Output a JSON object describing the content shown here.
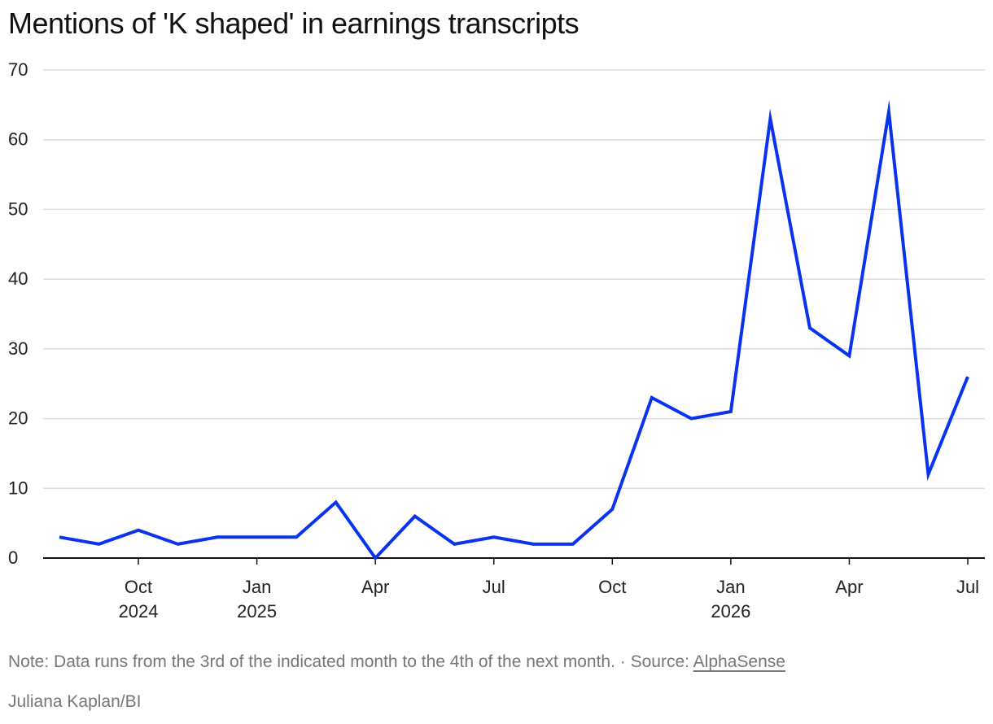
{
  "chart_data": {
    "type": "line",
    "title": "Mentions of 'K shaped' in earnings transcripts",
    "xlabel": "",
    "ylabel": "",
    "x": [
      "2024-08",
      "2024-09",
      "2024-10",
      "2024-11",
      "2024-12",
      "2025-01",
      "2025-02",
      "2025-03",
      "2025-04",
      "2025-05",
      "2025-06",
      "2025-07",
      "2025-08",
      "2025-09",
      "2025-10",
      "2025-11",
      "2025-12",
      "2026-01",
      "2026-02",
      "2026-03",
      "2026-04",
      "2026-05",
      "2026-06",
      "2026-07"
    ],
    "series": [
      {
        "values": [
          3,
          2,
          4,
          2,
          3,
          3,
          3,
          8,
          0,
          6,
          2,
          3,
          2,
          2,
          7,
          23,
          20,
          21,
          63,
          33,
          29,
          64,
          12,
          26
        ],
        "color": "#0a33ee"
      }
    ],
    "ylim": [
      0,
      70
    ],
    "yticks": [
      0,
      10,
      20,
      30,
      40,
      50,
      60,
      70
    ],
    "xticks": [
      {
        "month": "2024-10",
        "label": "Oct",
        "year": "2024"
      },
      {
        "month": "2025-01",
        "label": "Jan",
        "year": "2025"
      },
      {
        "month": "2025-04",
        "label": "Apr",
        "year": ""
      },
      {
        "month": "2025-07",
        "label": "Jul",
        "year": ""
      },
      {
        "month": "2025-10",
        "label": "Oct",
        "year": ""
      },
      {
        "month": "2026-01",
        "label": "Jan",
        "year": "2026"
      },
      {
        "month": "2026-04",
        "label": "Apr",
        "year": ""
      },
      {
        "month": "2026-07",
        "label": "Jul",
        "year": ""
      }
    ],
    "grid": true,
    "legend": "none"
  },
  "footer": {
    "note": "Note: Data runs from the 3rd of the indicated month to the 4th of the next month.",
    "separator": " · ",
    "source_prefix": "Source: ",
    "source_name": "AlphaSense",
    "credit": "Juliana Kaplan/BI"
  },
  "colors": {
    "line": "#0a33ee",
    "grid": "#dddddd",
    "axis": "#111111",
    "footer_text": "#777777"
  }
}
